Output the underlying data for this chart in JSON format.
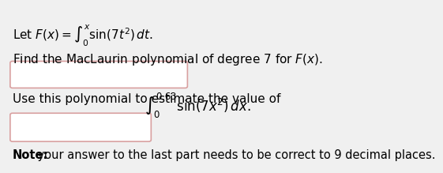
{
  "background_color": "#f0f0f0",
  "box_color": "#ffffff",
  "box_border_color": "#d9a0a0",
  "line1": "Let $F(x) = \\int_0^x \\sin(7t^2)\\, dt.$",
  "line2": "Find the MacLaurin polynomial of degree 7 for $F(x)$.",
  "line3": "Use this polynomial to estimate the value of",
  "integral_text": "$\\int_0^{0.63} \\sin(7x^2)\\, dx.$",
  "note_bold": "Note:",
  "note_rest": " your answer to the last part needs to be correct to 9 decimal places.",
  "font_size_main": 11,
  "font_size_note": 10.5
}
